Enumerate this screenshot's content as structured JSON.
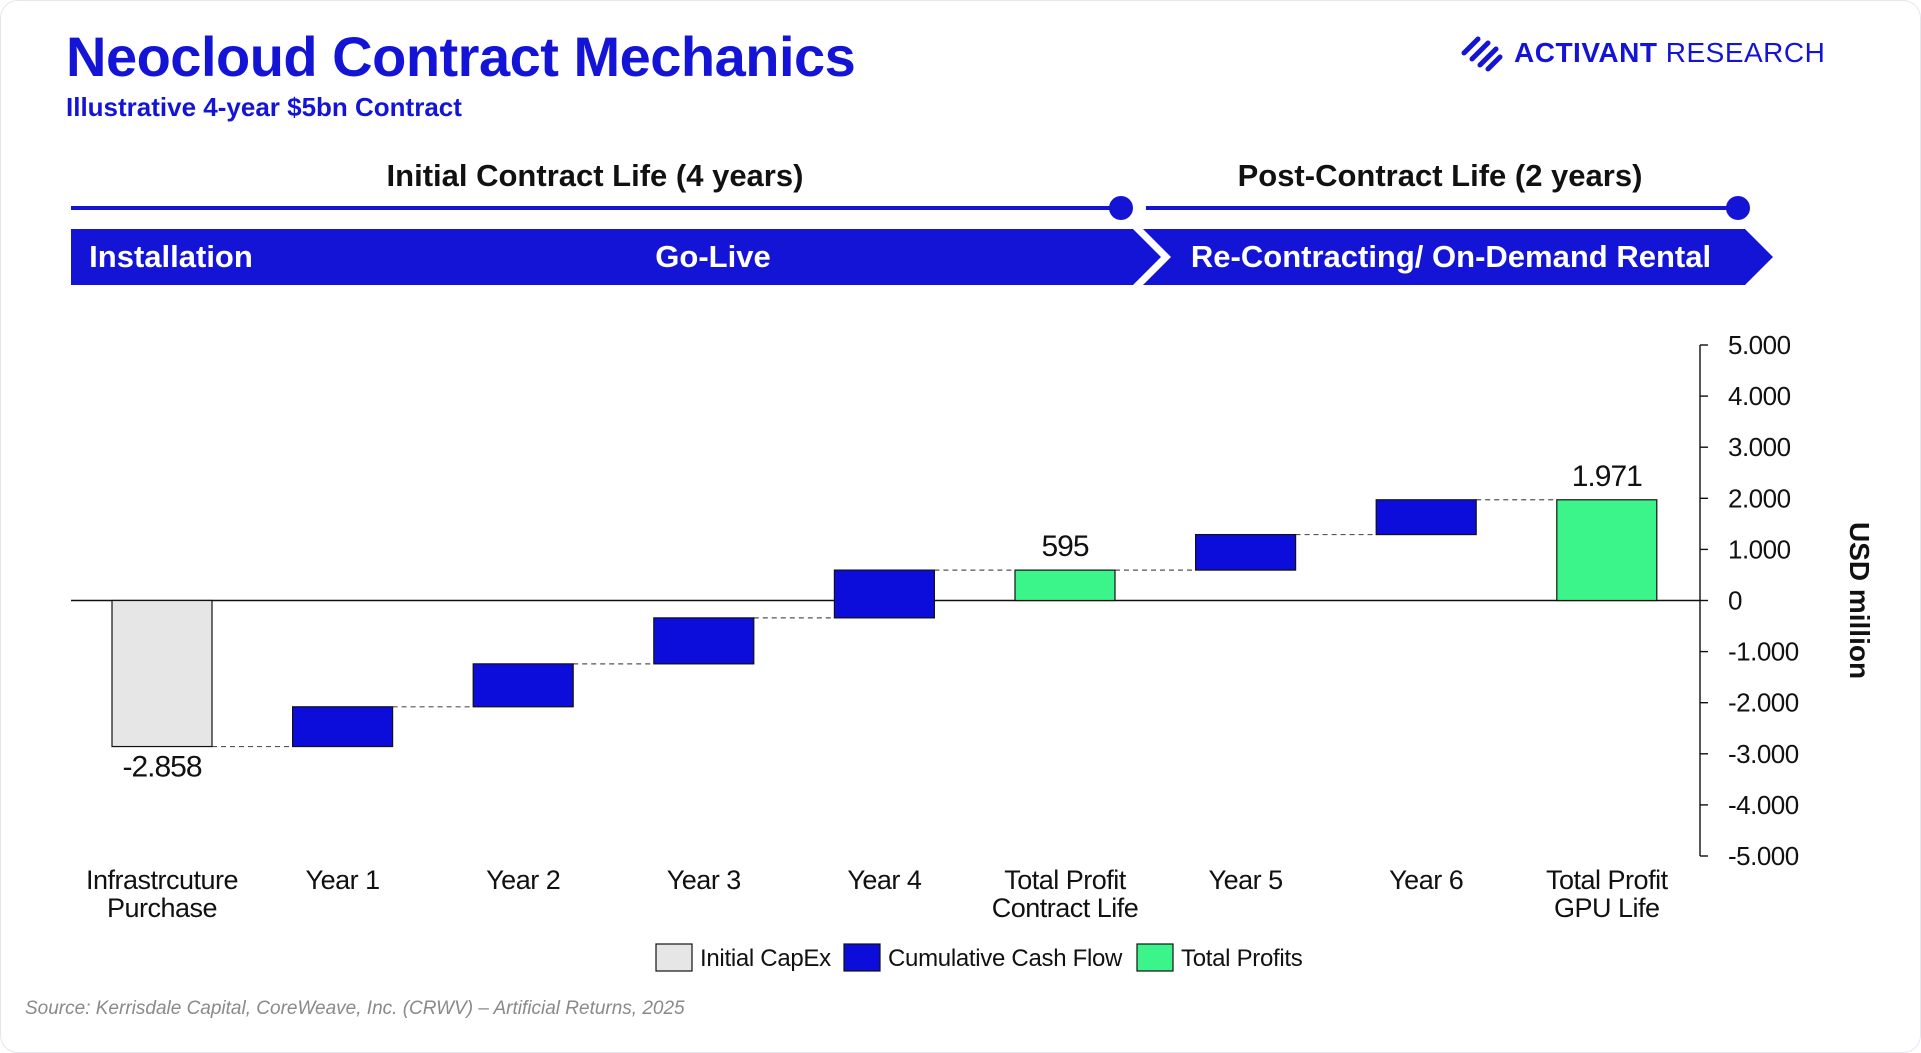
{
  "header": {
    "title": "Neocloud Contract Mechanics",
    "subtitle": "Illustrative 4-year $5bn Contract",
    "logo_bold": "ACTIVANT",
    "logo_light": "RESEARCH",
    "brand_color": "#1414d6"
  },
  "timeline": {
    "phase1_label": "Initial Contract Life (4 years)",
    "phase2_label": "Post-Contract Life (2 years)",
    "stages": [
      "Installation",
      "Go-Live",
      "Re-Contracting/ On-Demand Rental"
    ]
  },
  "chart_data": {
    "type": "waterfall",
    "ylabel": "USD million",
    "ylim": [
      -5000,
      5000
    ],
    "ytick_step": 1000,
    "ytick_labels": [
      "5.000",
      "4.000",
      "3.000",
      "2.000",
      "1.000",
      "0",
      "-1.000",
      "-2.000",
      "-3.000",
      "-4.000",
      "-5.000"
    ],
    "categories": [
      [
        "Infrastrcuture",
        "Purchase"
      ],
      [
        "Year 1"
      ],
      [
        "Year 2"
      ],
      [
        "Year 3"
      ],
      [
        "Year 4"
      ],
      [
        "Total Profit",
        "Contract Life"
      ],
      [
        "Year 5"
      ],
      [
        "Year 6"
      ],
      [
        "Total Profit",
        "GPU Life"
      ]
    ],
    "bars": [
      {
        "kind": "capex",
        "start": 0,
        "end": -2858,
        "label": "-2.858"
      },
      {
        "kind": "cashflow",
        "start": -2858,
        "end": -2080,
        "label": ""
      },
      {
        "kind": "cashflow",
        "start": -2080,
        "end": -1240,
        "label": ""
      },
      {
        "kind": "cashflow",
        "start": -1240,
        "end": -340,
        "label": ""
      },
      {
        "kind": "cashflow",
        "start": -340,
        "end": 595,
        "label": ""
      },
      {
        "kind": "profit",
        "start": 0,
        "end": 595,
        "label": "595"
      },
      {
        "kind": "cashflow",
        "start": 595,
        "end": 1290,
        "label": ""
      },
      {
        "kind": "cashflow",
        "start": 1290,
        "end": 1971,
        "label": ""
      },
      {
        "kind": "profit",
        "start": 0,
        "end": 1971,
        "label": "1.971"
      }
    ],
    "legend": [
      {
        "kind": "capex",
        "label": "Initial CapEx"
      },
      {
        "kind": "cashflow",
        "label": "Cumulative Cash Flow"
      },
      {
        "kind": "profit",
        "label": "Total Profits"
      }
    ],
    "colors": {
      "capex": "#e6e6e6",
      "cashflow": "#0d0ddb",
      "profit": "#3cf58a"
    }
  },
  "footer": {
    "source": "Source: Kerrisdale Capital, CoreWeave, Inc. (CRWV) – Artificial Returns, 2025"
  }
}
